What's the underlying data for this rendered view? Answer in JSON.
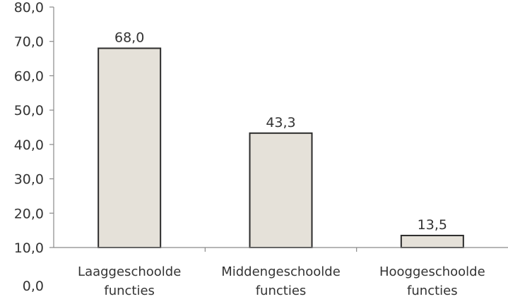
{
  "chart_data": {
    "type": "bar",
    "categories": [
      [
        "Laaggeschoolde",
        "functies"
      ],
      [
        "Middengeschoolde",
        "functies"
      ],
      [
        "Hooggeschoolde",
        "functies"
      ]
    ],
    "values": [
      68.0,
      43.3,
      13.5
    ],
    "value_labels": [
      "68,0",
      "43,3",
      "13,5"
    ],
    "y_ticks": [
      10,
      20,
      30,
      40,
      50,
      60,
      70,
      80
    ],
    "y_tick_labels": [
      "10,0",
      "20,0",
      "30,0",
      "40,0",
      "50,0",
      "60,0",
      "70,0",
      "80,0"
    ],
    "y_extra_label": "0,0",
    "ylim": [
      10,
      80
    ],
    "grid": false,
    "legend": "none",
    "colors": {
      "bar_fill": "#e5e1d9",
      "bar_stroke": "#2b2b2b",
      "axis": "#8a8a8a",
      "text": "#333333"
    }
  }
}
